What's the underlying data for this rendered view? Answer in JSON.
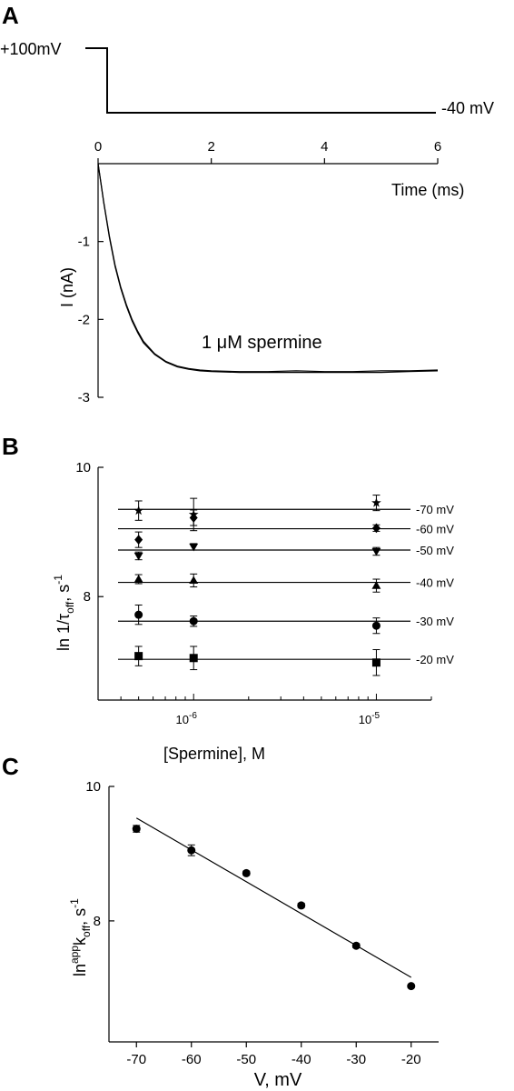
{
  "panels": {
    "a": {
      "letter": "A",
      "protocol": {
        "hold_label": "+100mV",
        "step_label": "-40 mV"
      },
      "annotation": "1 μM spermine",
      "chart_data": {
        "type": "line",
        "xlabel": "Time (ms)",
        "ylabel": "I (nA)",
        "xlim": [
          0,
          6
        ],
        "ylim": [
          -3,
          0
        ],
        "x_ticks": [
          "0",
          "2",
          "4",
          "6"
        ],
        "y_ticks": [
          "-1",
          "-2",
          "-3"
        ],
        "series": [
          {
            "points": [
              [
                0.0,
                0.0
              ],
              [
                0.05,
                -0.25
              ],
              [
                0.1,
                -0.5
              ],
              [
                0.2,
                -0.95
              ],
              [
                0.3,
                -1.32
              ],
              [
                0.4,
                -1.6
              ],
              [
                0.5,
                -1.83
              ],
              [
                0.6,
                -2.02
              ],
              [
                0.7,
                -2.17
              ],
              [
                0.8,
                -2.3
              ],
              [
                1.0,
                -2.45
              ],
              [
                1.2,
                -2.55
              ],
              [
                1.4,
                -2.61
              ],
              [
                1.6,
                -2.64
              ],
              [
                1.8,
                -2.66
              ],
              [
                2.0,
                -2.67
              ],
              [
                2.5,
                -2.68
              ],
              [
                3.0,
                -2.68
              ],
              [
                3.5,
                -2.68
              ],
              [
                4.0,
                -2.68
              ],
              [
                4.5,
                -2.68
              ],
              [
                5.0,
                -2.68
              ],
              [
                5.5,
                -2.67
              ],
              [
                6.0,
                -2.66
              ]
            ]
          },
          {
            "points": [
              [
                0.0,
                0.0
              ],
              [
                0.05,
                -0.24
              ],
              [
                0.1,
                -0.49
              ],
              [
                0.2,
                -0.93
              ],
              [
                0.3,
                -1.3
              ],
              [
                0.4,
                -1.58
              ],
              [
                0.5,
                -1.81
              ],
              [
                0.6,
                -2.0
              ],
              [
                0.7,
                -2.15
              ],
              [
                0.8,
                -2.28
              ],
              [
                1.0,
                -2.44
              ],
              [
                1.2,
                -2.54
              ],
              [
                1.4,
                -2.6
              ],
              [
                1.6,
                -2.63
              ],
              [
                1.8,
                -2.65
              ],
              [
                2.0,
                -2.66
              ],
              [
                2.5,
                -2.67
              ],
              [
                3.0,
                -2.67
              ],
              [
                3.5,
                -2.66
              ],
              [
                4.0,
                -2.67
              ],
              [
                4.5,
                -2.67
              ],
              [
                5.0,
                -2.66
              ],
              [
                5.5,
                -2.66
              ],
              [
                6.0,
                -2.65
              ]
            ]
          }
        ]
      }
    },
    "b": {
      "letter": "B",
      "chart_data": {
        "type": "scatter",
        "xlabel": "[Spermine], M",
        "ylabel": "ln 1/τoff, s-1",
        "ylabel_parts": {
          "main": "ln 1/τ",
          "sub": "off",
          "sep": ", s",
          "sup": "-1"
        },
        "x_scale": "log",
        "xlim": [
          3e-07,
          2e-05
        ],
        "ylim": [
          6.4,
          10
        ],
        "x_ticks": [
          {
            "base": "10",
            "exp": "-6",
            "value": 1e-06
          },
          {
            "base": "10",
            "exp": "-5",
            "value": 1e-05
          }
        ],
        "y_ticks": [
          "10",
          "8"
        ],
        "x": [
          5e-07,
          1e-06,
          1e-05
        ],
        "series": [
          {
            "name": "-70 mV",
            "marker": "star",
            "fit": 9.35,
            "values": [
              9.33,
              9.27,
              9.45
            ],
            "errors": [
              0.15,
              0.25,
              0.12
            ]
          },
          {
            "name": "-60 mV",
            "marker": "diamond",
            "fit": 9.05,
            "values": [
              8.88,
              9.22,
              9.06
            ],
            "errors": [
              0.12,
              0.12,
              0.05
            ]
          },
          {
            "name": "-50 mV",
            "marker": "triangle-down",
            "fit": 8.72,
            "values": [
              8.63,
              8.77,
              8.7
            ],
            "errors": [
              0.06,
              0.05,
              0.06
            ]
          },
          {
            "name": "-40 mV",
            "marker": "triangle-up",
            "fit": 8.22,
            "values": [
              8.27,
              8.25,
              8.17
            ],
            "errors": [
              0.07,
              0.1,
              0.1
            ]
          },
          {
            "name": "-30 mV",
            "marker": "circle",
            "fit": 7.62,
            "values": [
              7.72,
              7.62,
              7.55
            ],
            "errors": [
              0.15,
              0.08,
              0.12
            ]
          },
          {
            "name": "-20 mV",
            "marker": "square",
            "fit": 7.03,
            "values": [
              7.08,
              7.05,
              6.98
            ],
            "errors": [
              0.15,
              0.18,
              0.2
            ]
          }
        ]
      }
    },
    "c": {
      "letter": "C",
      "chart_data": {
        "type": "scatter",
        "xlabel": "V, mV",
        "ylabel": "ln app koff, s-1",
        "ylabel_parts": {
          "main": "ln",
          "sup1": "app",
          "k": "k",
          "sub": "off",
          "sep": ", s",
          "sup2": "-1"
        },
        "xlim": [
          -75,
          -15
        ],
        "ylim": [
          6.2,
          10
        ],
        "x_ticks": [
          "-70",
          "-60",
          "-50",
          "-40",
          "-30",
          "-20"
        ],
        "y_ticks": [
          "10",
          "8"
        ],
        "x": [
          -70,
          -60,
          -50,
          -40,
          -30,
          -20
        ],
        "values": [
          9.37,
          9.05,
          8.71,
          8.23,
          7.63,
          7.03
        ],
        "errors": [
          0.05,
          0.08,
          0.03,
          0.03,
          0.03,
          0.02
        ],
        "fit": {
          "x": [
            -70,
            -20
          ],
          "y": [
            9.53,
            7.16
          ]
        }
      }
    }
  }
}
